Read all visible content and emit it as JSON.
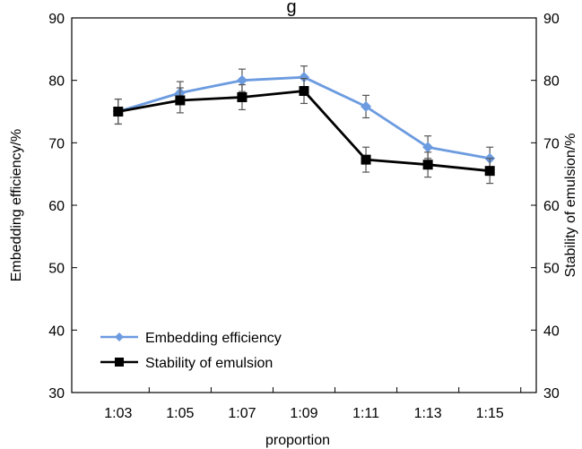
{
  "chart_data": {
    "type": "line",
    "title": "g",
    "xlabel": "proportion",
    "ylabel_left": "Embedding efficiency/%",
    "ylabel_right": "Stability of emulsion/%",
    "categories": [
      "1:03",
      "1:05",
      "1:07",
      "1:09",
      "1:11",
      "1:13",
      "1:15"
    ],
    "ylim": [
      30,
      90
    ],
    "yticks": [
      "30",
      "40",
      "50",
      "60",
      "70",
      "80",
      "90"
    ],
    "grid": false,
    "legend_position": "bottom-left",
    "series": [
      {
        "name": "Embedding efficiency",
        "color": "#6c9be0",
        "marker": "diamond",
        "values": [
          75.0,
          78.0,
          80.0,
          80.5,
          75.8,
          69.3,
          67.5
        ],
        "errors": [
          2.0,
          1.8,
          1.8,
          1.8,
          1.8,
          1.8,
          1.8
        ]
      },
      {
        "name": "Stability of emulsion",
        "color": "#000000",
        "marker": "square",
        "values": [
          75.0,
          76.8,
          77.3,
          78.3,
          67.3,
          66.5,
          65.5
        ],
        "errors": [
          2.0,
          2.0,
          2.0,
          2.0,
          2.0,
          2.0,
          2.0
        ]
      }
    ]
  }
}
